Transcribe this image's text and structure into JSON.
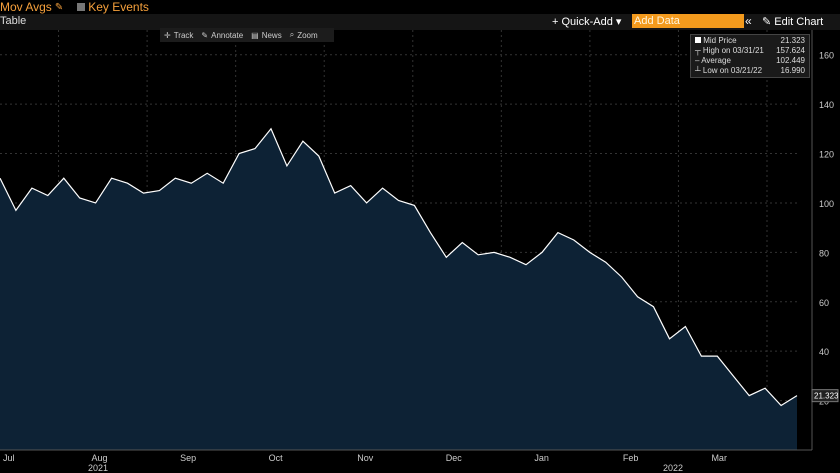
{
  "header": {
    "mov_avgs": "Mov Avgs",
    "key_events": "Key Events"
  },
  "toolbar": {
    "table": "Table",
    "quick_add": "+ Quick-Add ▾",
    "add_data_placeholder": "Add Data",
    "chevrons": "«",
    "edit_chart": "Edit Chart"
  },
  "chart_tools": {
    "track": "Track",
    "annotate": "Annotate",
    "news": "News",
    "zoom": "Zoom"
  },
  "legend": {
    "mid_price_label": "Mid Price",
    "mid_price": "21.323",
    "high_label": "High on 03/31/21",
    "high": "157.624",
    "avg_label": "Average",
    "avg": "102.449",
    "low_label": "Low on 03/21/22",
    "low": "16.990"
  },
  "chart_data": {
    "type": "area",
    "ylim": [
      0,
      170
    ],
    "yticks": [
      20,
      40,
      60,
      80,
      100,
      120,
      140,
      160
    ],
    "ytick_labels": [
      "20",
      "40",
      "60",
      "80",
      "100",
      "120",
      "140",
      "160"
    ],
    "month_labels": [
      "Jul",
      "Aug",
      "Sep",
      "Oct",
      "Nov",
      "Dec",
      "Jan",
      "Feb",
      "Mar"
    ],
    "year_labels": [
      "2021",
      "2022"
    ],
    "last_value": "21.323",
    "series": [
      {
        "values": [
          110,
          97,
          106,
          103,
          110,
          102,
          100,
          110,
          108,
          104,
          105,
          110,
          108,
          112,
          108,
          120,
          122,
          130,
          115,
          125,
          119,
          104,
          107,
          100,
          106,
          101,
          99,
          88,
          78,
          84,
          79,
          80,
          78,
          75,
          80,
          88,
          85,
          80,
          76,
          70,
          62,
          58,
          45,
          50,
          38,
          38,
          30,
          22,
          25,
          18,
          22
        ]
      }
    ]
  },
  "colors": {
    "accent": "#f39a1d",
    "fill": "#0d2235",
    "line": "#ffffff"
  }
}
